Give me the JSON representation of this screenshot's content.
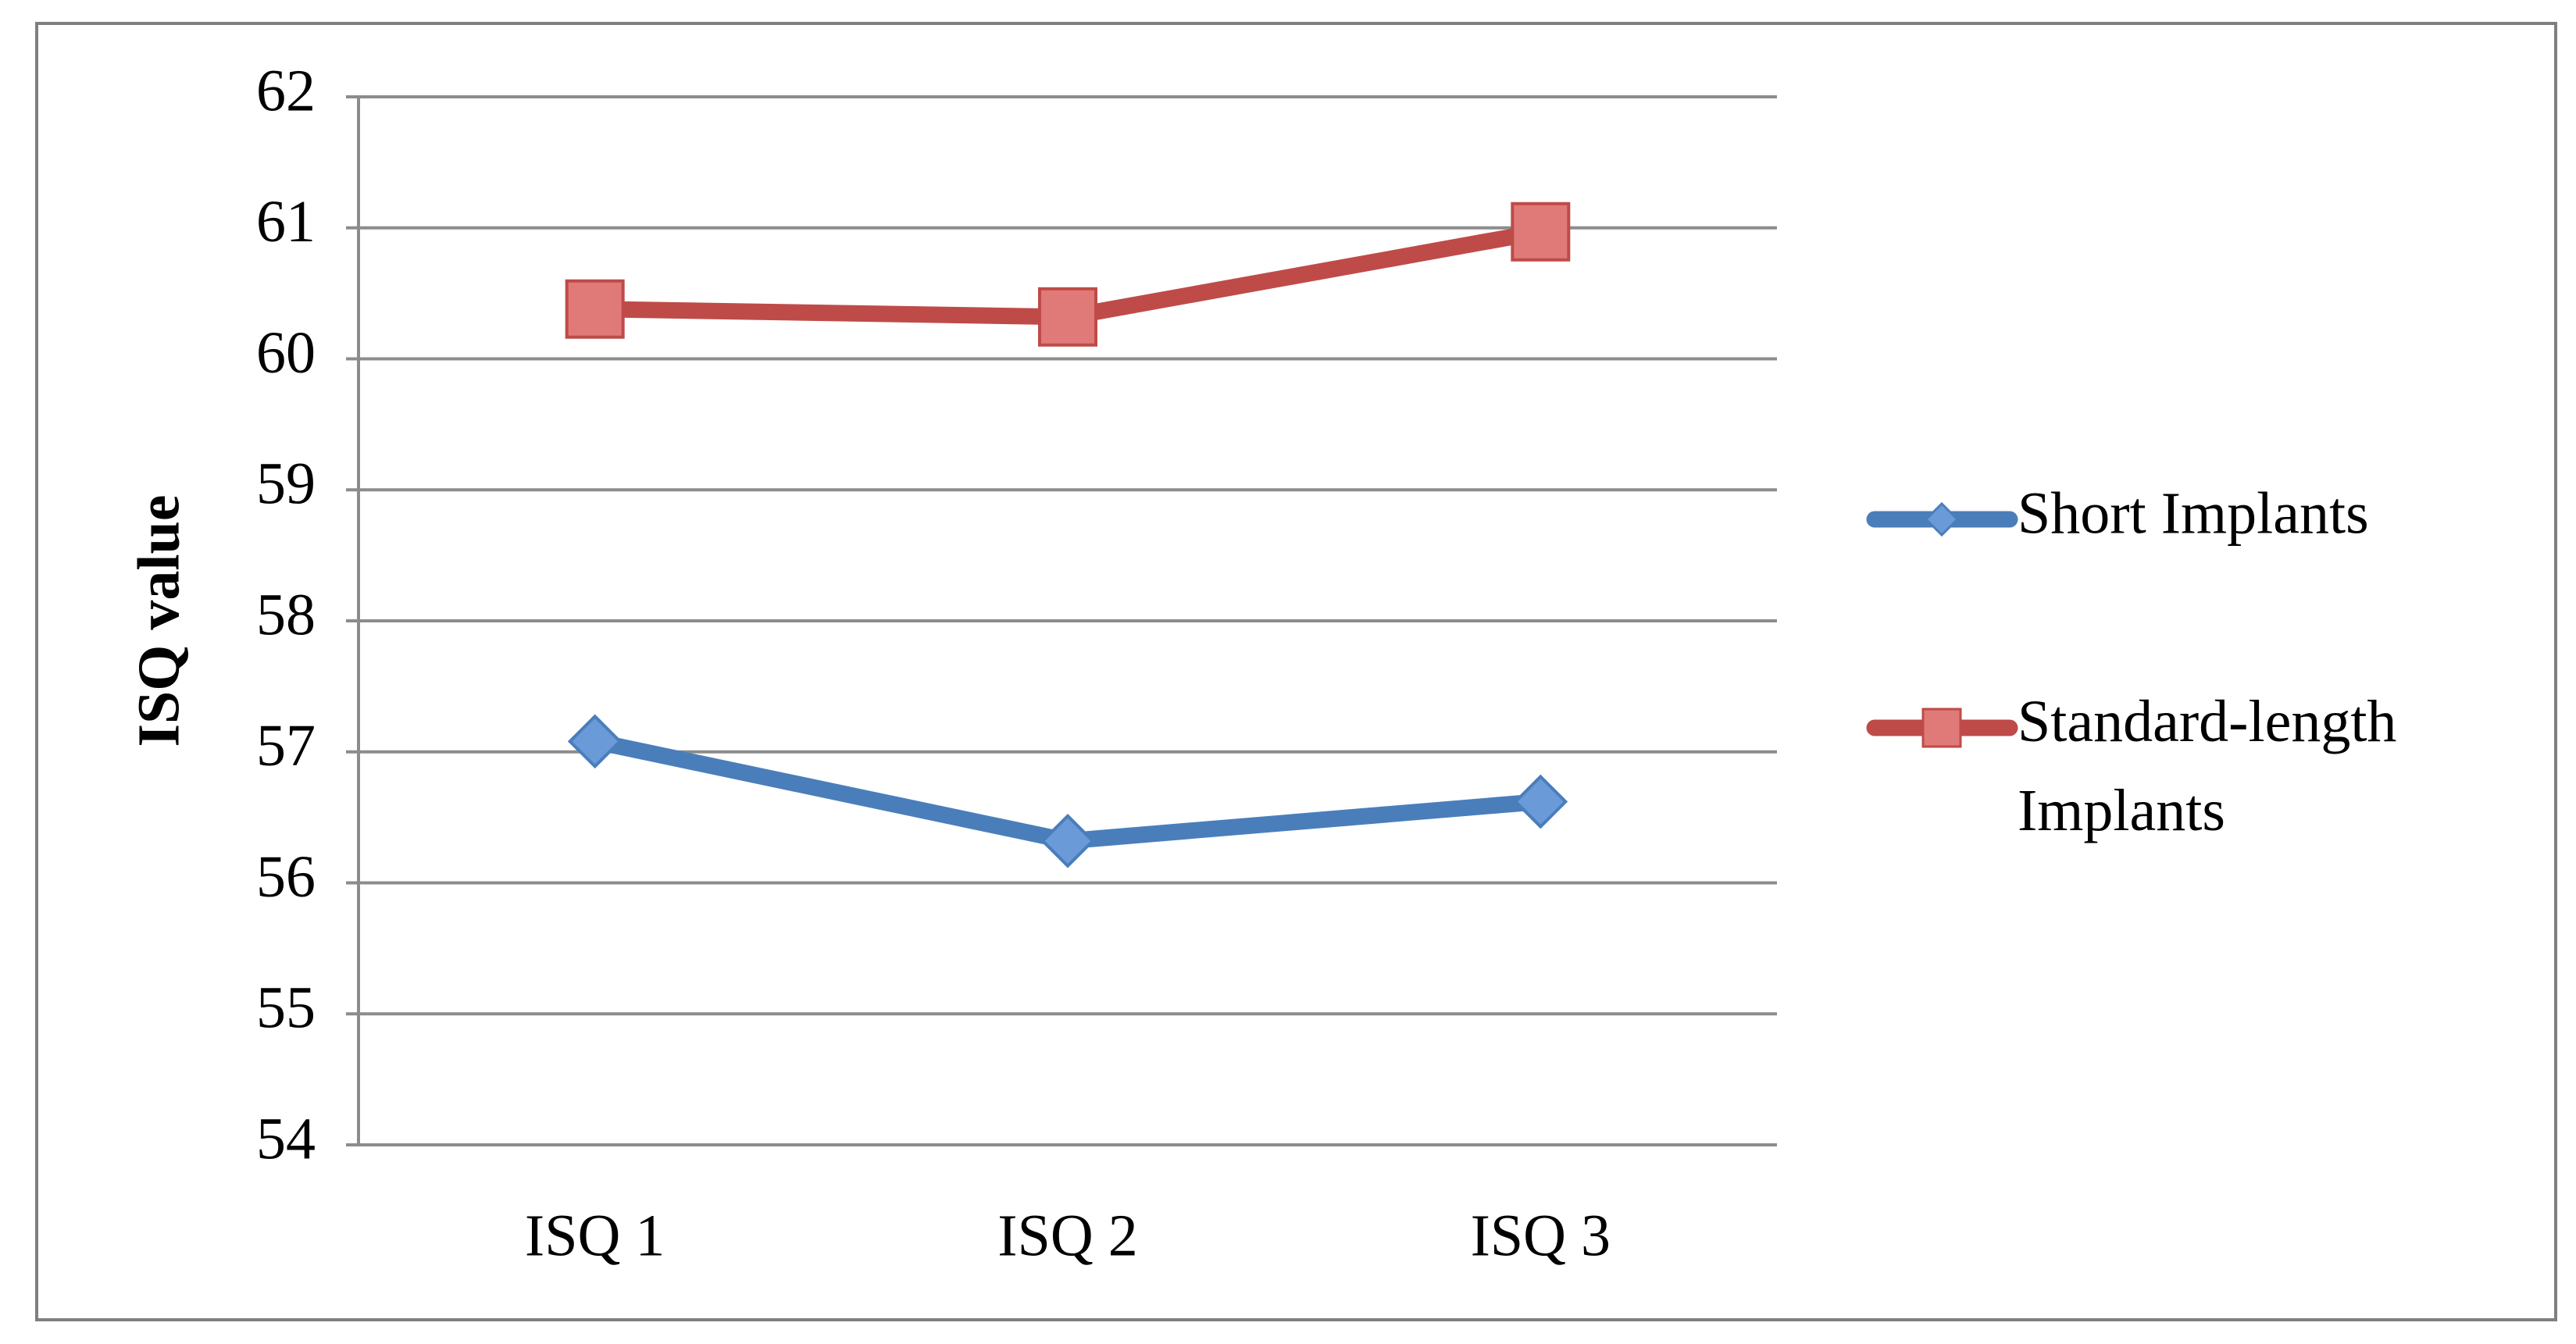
{
  "chart_data": {
    "type": "line",
    "y_label": "ISQ value",
    "categories": [
      "ISQ 1",
      "ISQ 2",
      "ISQ 3"
    ],
    "series": [
      {
        "name": "Short Implants",
        "color": "#4a7ebb",
        "marker": "diamond",
        "values": [
          57.08,
          56.32,
          56.62
        ]
      },
      {
        "name": "Standard-length Implants",
        "color": "#be4b48",
        "marker": "square",
        "values": [
          60.38,
          60.32,
          60.97
        ]
      }
    ],
    "ylim": [
      54,
      62
    ],
    "yticks": [
      54,
      55,
      56,
      57,
      58,
      59,
      60,
      61,
      62
    ],
    "grid": true,
    "legend": "right"
  }
}
